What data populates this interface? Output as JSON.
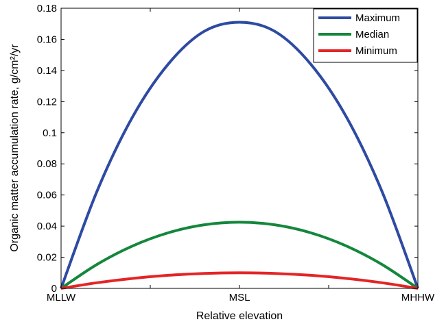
{
  "chart_data": {
    "type": "line",
    "xlabel": "Relative elevation",
    "ylabel": "Organic matter accumulation rate, g/cm²/yr",
    "x_categories": [
      "MLLW",
      "MSL",
      "MHHW"
    ],
    "xlim": [
      0,
      1
    ],
    "ylim": [
      0,
      0.18
    ],
    "yticks": [
      0,
      0.02,
      0.04,
      0.06,
      0.08,
      0.1,
      0.12,
      0.14,
      0.16,
      0.18
    ],
    "ytick_labels": [
      "0",
      "0.02",
      "0.04",
      "0.06",
      "0.08",
      "0.1",
      "0.12",
      "0.14",
      "0.16",
      "0.18"
    ],
    "x_minor_ticks": [
      0.25,
      0.75
    ],
    "grid": false,
    "legend_position": "top-right",
    "series": [
      {
        "name": "Maximum",
        "color": "#2e4aa2",
        "x": [
          0,
          0.1,
          0.2,
          0.3,
          0.4,
          0.5,
          0.6,
          0.7,
          0.8,
          0.9,
          1
        ],
        "y": [
          0,
          0.062,
          0.11,
          0.144,
          0.165,
          0.171,
          0.165,
          0.144,
          0.11,
          0.062,
          0
        ]
      },
      {
        "name": "Median",
        "color": "#14873c",
        "x": [
          0,
          0.1,
          0.2,
          0.3,
          0.4,
          0.5,
          0.6,
          0.7,
          0.8,
          0.9,
          1
        ],
        "y": [
          0,
          0.0153,
          0.0272,
          0.0357,
          0.0408,
          0.0425,
          0.0408,
          0.0357,
          0.0272,
          0.0153,
          0
        ]
      },
      {
        "name": "Minimum",
        "color": "#e32526",
        "x": [
          0,
          0.1,
          0.2,
          0.3,
          0.4,
          0.5,
          0.6,
          0.7,
          0.8,
          0.9,
          1
        ],
        "y": [
          0,
          0.0036,
          0.0064,
          0.0084,
          0.0096,
          0.01,
          0.0096,
          0.0084,
          0.0064,
          0.0036,
          0
        ]
      }
    ]
  }
}
